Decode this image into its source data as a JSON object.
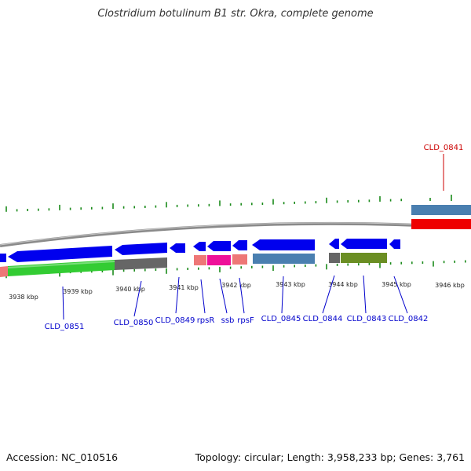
{
  "title": "Clostridium botulinum B1 str. Okra, complete genome",
  "footer": {
    "accession": "Accession: NC_010516",
    "stats": "Topology: circular; Length: 3,958,233 bp; Genes: 3,761"
  },
  "colors": {
    "backbone": "#8a8a8a",
    "tick": "#1a8a1a",
    "label_blue": "#0000cc",
    "label_red": "#cc0000",
    "cds": "#0000ee",
    "gene_steelblue": "#4a7fb0",
    "gene_green": "#33cc33",
    "gene_gray": "#666666",
    "gene_salmon": "#ee7777",
    "gene_magenta": "#ee1199",
    "gene_olive": "#6b8e23",
    "gene_red": "#ee0000"
  },
  "kbp_labels": [
    "3938 kbp",
    "3939 kbp",
    "3940 kbp",
    "3941 kbp",
    "3942 kbp",
    "3943 kbp",
    "3944 kbp",
    "3945 kbp",
    "3946 kbp"
  ],
  "gene_labels": {
    "lower": [
      "CLD_0851",
      "CLD_0850",
      "CLD_0849",
      "rpsR",
      "ssb",
      "rpsF",
      "CLD_0845",
      "CLD_0844",
      "CLD_0843",
      "CLD_0842"
    ],
    "upper": [
      "CLD_0841"
    ]
  }
}
